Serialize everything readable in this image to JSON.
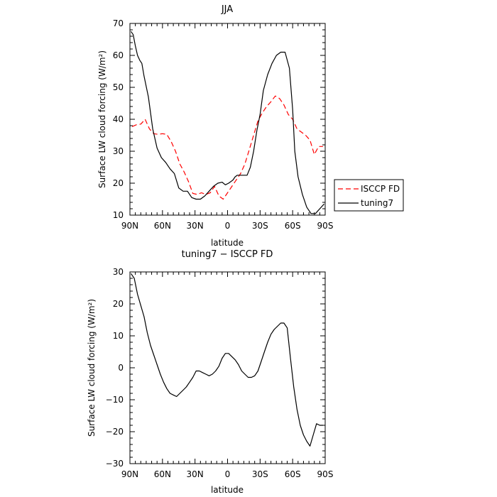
{
  "chart_data": [
    {
      "type": "line",
      "title": "JJA",
      "xlabel": "latitude",
      "ylabel": "Surface LW cloud forcing (W/m²)",
      "x_ticks": [
        {
          "value": 90,
          "label": "90N"
        },
        {
          "value": 60,
          "label": "60N"
        },
        {
          "value": 30,
          "label": "30N"
        },
        {
          "value": 0,
          "label": "0"
        },
        {
          "value": -30,
          "label": "30S"
        },
        {
          "value": -60,
          "label": "60S"
        },
        {
          "value": -90,
          "label": "90S"
        }
      ],
      "xlim": [
        90,
        -90
      ],
      "ylim": [
        10,
        70
      ],
      "y_ticks": [
        10,
        20,
        30,
        40,
        50,
        60,
        70
      ],
      "legend_position": "outside right",
      "series": [
        {
          "name": "ISCCP FD",
          "color": "#ff0000",
          "dash": "dashed",
          "x": [
            88,
            84,
            80,
            76,
            72,
            68,
            64,
            60,
            56,
            52,
            48,
            44,
            40,
            36,
            32,
            28,
            24,
            20,
            16,
            12,
            8,
            4,
            0,
            -4,
            -8,
            -12,
            -16,
            -20,
            -24,
            -28,
            -32,
            -36,
            -40,
            -44,
            -48,
            -52,
            -56,
            -60,
            -64,
            -68,
            -72,
            -76,
            -80,
            -84,
            -88
          ],
          "y": [
            37.7,
            38.3,
            38.5,
            40,
            37,
            35.5,
            35.3,
            35.5,
            35.3,
            33,
            30,
            26,
            23.5,
            20.5,
            16.8,
            16.5,
            17,
            16.5,
            17,
            19,
            16,
            15,
            17,
            19,
            21,
            23,
            26,
            30.5,
            35,
            39.5,
            42,
            44,
            45.5,
            47.3,
            46.5,
            44.5,
            41.5,
            40,
            37,
            36,
            35,
            33.5,
            29,
            31.5,
            31.5
          ]
        },
        {
          "name": "tuning7",
          "color": "#000000",
          "dash": "solid",
          "x": [
            89,
            87,
            85,
            83,
            81,
            79,
            77,
            73,
            69,
            65,
            61,
            57,
            53,
            49,
            45,
            41,
            37,
            33,
            29,
            25,
            21,
            17,
            13,
            9,
            5,
            2,
            -1,
            -3,
            -5,
            -7,
            -9,
            -12,
            -15,
            -18,
            -21,
            -24,
            -27,
            -30,
            -33,
            -37,
            -41,
            -45,
            -49,
            -53,
            -57,
            -60,
            -62,
            -65,
            -69,
            -73,
            -77,
            -81,
            -85,
            -89
          ],
          "y": [
            67.5,
            66.5,
            63,
            60,
            58.5,
            57.5,
            53.5,
            47,
            37,
            31,
            28,
            26.5,
            24.5,
            23,
            18.5,
            17.5,
            17.5,
            15.5,
            15,
            15,
            16,
            17.5,
            19,
            20,
            20.3,
            19.5,
            20,
            20.5,
            21,
            22,
            22.5,
            22.5,
            22.5,
            22.5,
            25,
            30,
            36.5,
            41.5,
            49,
            54,
            57.5,
            60,
            61,
            61,
            56,
            43,
            30,
            22,
            16.5,
            12.5,
            10.5,
            10.5,
            12,
            13.5
          ]
        }
      ]
    },
    {
      "type": "line",
      "title": "tuning7 − ISCCP FD",
      "xlabel": "latitude",
      "ylabel": "Surface LW cloud forcing (W/m²)",
      "x_ticks": [
        {
          "value": 90,
          "label": "90N"
        },
        {
          "value": 60,
          "label": "60N"
        },
        {
          "value": 30,
          "label": "30N"
        },
        {
          "value": 0,
          "label": "0"
        },
        {
          "value": -30,
          "label": "30S"
        },
        {
          "value": -60,
          "label": "60S"
        },
        {
          "value": -90,
          "label": "90S"
        }
      ],
      "xlim": [
        90,
        -90
      ],
      "ylim": [
        -30,
        30
      ],
      "y_ticks": [
        -30,
        -20,
        -10,
        0,
        10,
        20,
        30
      ],
      "series": [
        {
          "name": "tuning7",
          "color": "#000000",
          "dash": "solid",
          "x": [
            89,
            86,
            83,
            80,
            77,
            74,
            71,
            68,
            65,
            62,
            59,
            56,
            53,
            50,
            47,
            44,
            41,
            38,
            35,
            32,
            29,
            26,
            23,
            20,
            17,
            14,
            11,
            8,
            5,
            2,
            -1,
            -4,
            -7,
            -10,
            -13,
            -16,
            -19,
            -22,
            -25,
            -28,
            -31,
            -34,
            -37,
            -40,
            -43,
            -46,
            -49,
            -52,
            -55,
            -58,
            -61,
            -64,
            -67,
            -70,
            -73,
            -76,
            -79,
            -82,
            -85,
            -88
          ],
          "y": [
            29.5,
            28,
            23,
            19.5,
            16,
            11,
            7,
            4,
            1,
            -2,
            -4.5,
            -6.5,
            -8,
            -8.5,
            -9,
            -8,
            -7,
            -6,
            -4.5,
            -3,
            -1,
            -1,
            -1.5,
            -2,
            -2.5,
            -2,
            -1,
            0.5,
            3,
            4.5,
            4.5,
            3.5,
            2.5,
            1,
            -1,
            -2,
            -3,
            -3,
            -2.5,
            -1,
            2,
            5,
            8,
            10.5,
            12,
            13,
            14,
            14,
            12.5,
            3,
            -6,
            -13,
            -18,
            -21,
            -23,
            -24.5,
            -21,
            -17.5,
            -18,
            -18
          ]
        }
      ]
    }
  ]
}
